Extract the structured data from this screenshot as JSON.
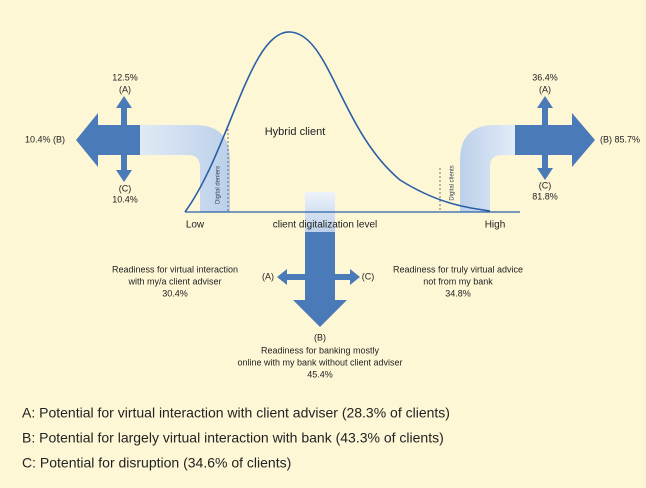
{
  "left": {
    "a_value": "12.5%",
    "a_label": "(A)",
    "b_label": "10.4% (B)",
    "c_label": "(C)",
    "c_value": "10.4%",
    "band_label": "Digital deniers"
  },
  "center_label": "Hybrid client",
  "right": {
    "a_value": "36.4%",
    "a_label": "(A)",
    "b_label": "(B) 85.7%",
    "c_label": "(C)",
    "c_value": "81.8%",
    "band_label": "Digital clients"
  },
  "axis": {
    "low": "Low",
    "title": "client digitalization level",
    "high": "High"
  },
  "bottom": {
    "a_label": "(A)",
    "c_label": "(C)",
    "b_label": "(B)",
    "b_text": [
      "Readiness for banking mostly",
      "online with my bank without client adviser",
      "45.4%"
    ],
    "a_text": [
      "Readiness for virtual  interaction",
      "with my/a client adviser",
      "30.4%"
    ],
    "c_text": [
      "Readiness for truly virtual advice",
      "not from my bank",
      "34.8%"
    ]
  },
  "legend": [
    "A: Potential for virtual interaction with client adviser (28.3% of clients)",
    "B: Potential for largely virtual interaction with bank (43.3% of clients)",
    "C: Potential for disruption (34.6% of clients)"
  ]
}
